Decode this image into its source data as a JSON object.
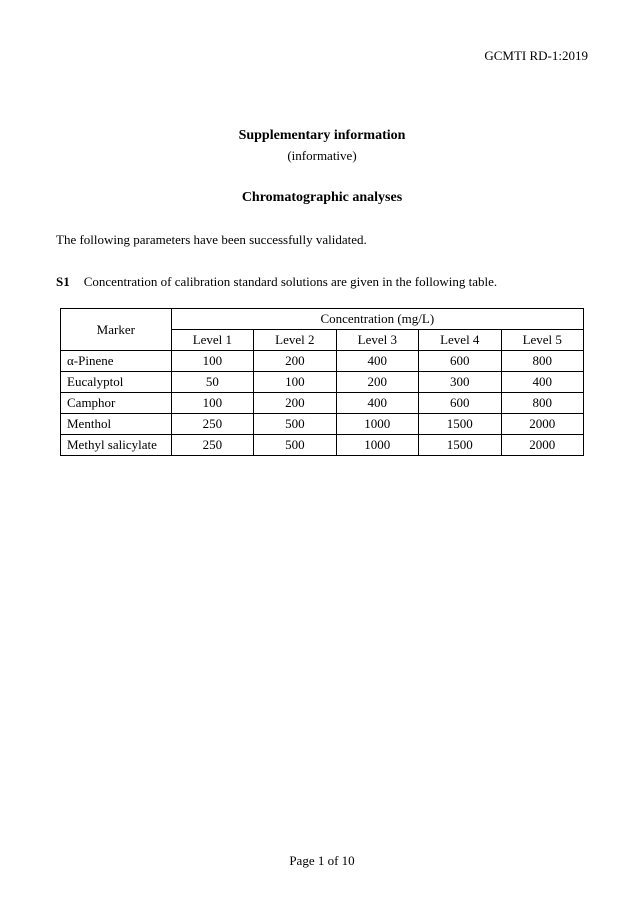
{
  "header": {
    "code": "GCMTI RD-1:2019"
  },
  "titles": {
    "main": "Supplementary information",
    "sub": "(informative)",
    "section": "Chromatographic analyses"
  },
  "intro": "The following parameters have been successfully validated.",
  "s1": {
    "label": "S1",
    "text": "Concentration of calibration standard solutions are given in the following table."
  },
  "table": {
    "marker_header": "Marker",
    "conc_header": "Concentration (mg/L)",
    "levels": [
      "Level 1",
      "Level 2",
      "Level 3",
      "Level 4",
      "Level 5"
    ],
    "rows": [
      {
        "marker": "α-Pinene",
        "values": [
          "100",
          "200",
          "400",
          "600",
          "800"
        ]
      },
      {
        "marker": "Eucalyptol",
        "values": [
          "50",
          "100",
          "200",
          "300",
          "400"
        ]
      },
      {
        "marker": "Camphor",
        "values": [
          "100",
          "200",
          "400",
          "600",
          "800"
        ]
      },
      {
        "marker": "Menthol",
        "values": [
          "250",
          "500",
          "1000",
          "1500",
          "2000"
        ]
      },
      {
        "marker": "Methyl salicylate",
        "values": [
          "250",
          "500",
          "1000",
          "1500",
          "2000"
        ]
      }
    ]
  },
  "footer": {
    "page": "Page 1 of 10"
  }
}
